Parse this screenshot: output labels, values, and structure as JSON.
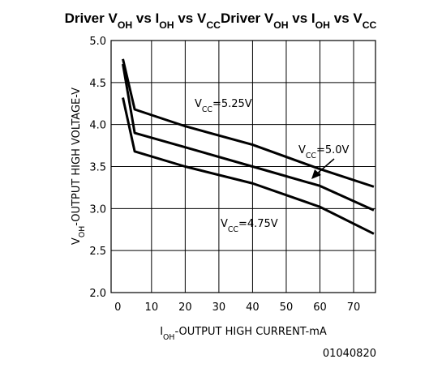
{
  "chart_data": {
    "type": "line",
    "title": [
      "Driver V",
      "OH",
      " vs I",
      "OH",
      " vs V",
      "CC",
      "Driver V",
      "OH",
      " vs I",
      "OH",
      " vs V",
      "CC"
    ],
    "x_label": [
      "I",
      "OH",
      "-OUTPUT HIGH CURRENT-mA"
    ],
    "y_label": [
      "V",
      "OH",
      "-OUTPUT HIGH VOLTAGE-V"
    ],
    "annotations": [
      [
        "V",
        "CC",
        "=5.25V"
      ],
      [
        "V",
        "CC",
        "=5.0V"
      ],
      [
        "V",
        "CC",
        "=4.75V"
      ]
    ],
    "footnote": "01040820",
    "x": [
      1.5,
      5,
      20,
      40,
      60,
      76
    ],
    "series": [
      {
        "color": "#000000",
        "values": [
          4.78,
          4.18,
          3.98,
          3.76,
          3.47,
          3.26
        ]
      },
      {
        "color": "#000000",
        "values": [
          4.72,
          3.9,
          3.73,
          3.5,
          3.27,
          2.98
        ]
      },
      {
        "color": "#000000",
        "values": [
          4.32,
          3.68,
          3.5,
          3.3,
          3.02,
          2.7
        ]
      }
    ],
    "xlim": [
      -2,
      76.5
    ],
    "xticks": [
      0,
      10,
      20,
      30,
      40,
      50,
      60,
      70
    ],
    "ylim": [
      2,
      5
    ],
    "yticks": [
      {
        "value": 2,
        "label": "2.0"
      },
      {
        "value": 2.5,
        "label": "2.5"
      },
      {
        "value": 3,
        "label": "3.0"
      },
      {
        "value": 3.5,
        "label": "3.5"
      },
      {
        "value": 4,
        "label": "4.0"
      },
      {
        "value": 4.5,
        "label": "4.5"
      },
      {
        "value": 5,
        "label": "5.0"
      }
    ],
    "grid": true
  }
}
